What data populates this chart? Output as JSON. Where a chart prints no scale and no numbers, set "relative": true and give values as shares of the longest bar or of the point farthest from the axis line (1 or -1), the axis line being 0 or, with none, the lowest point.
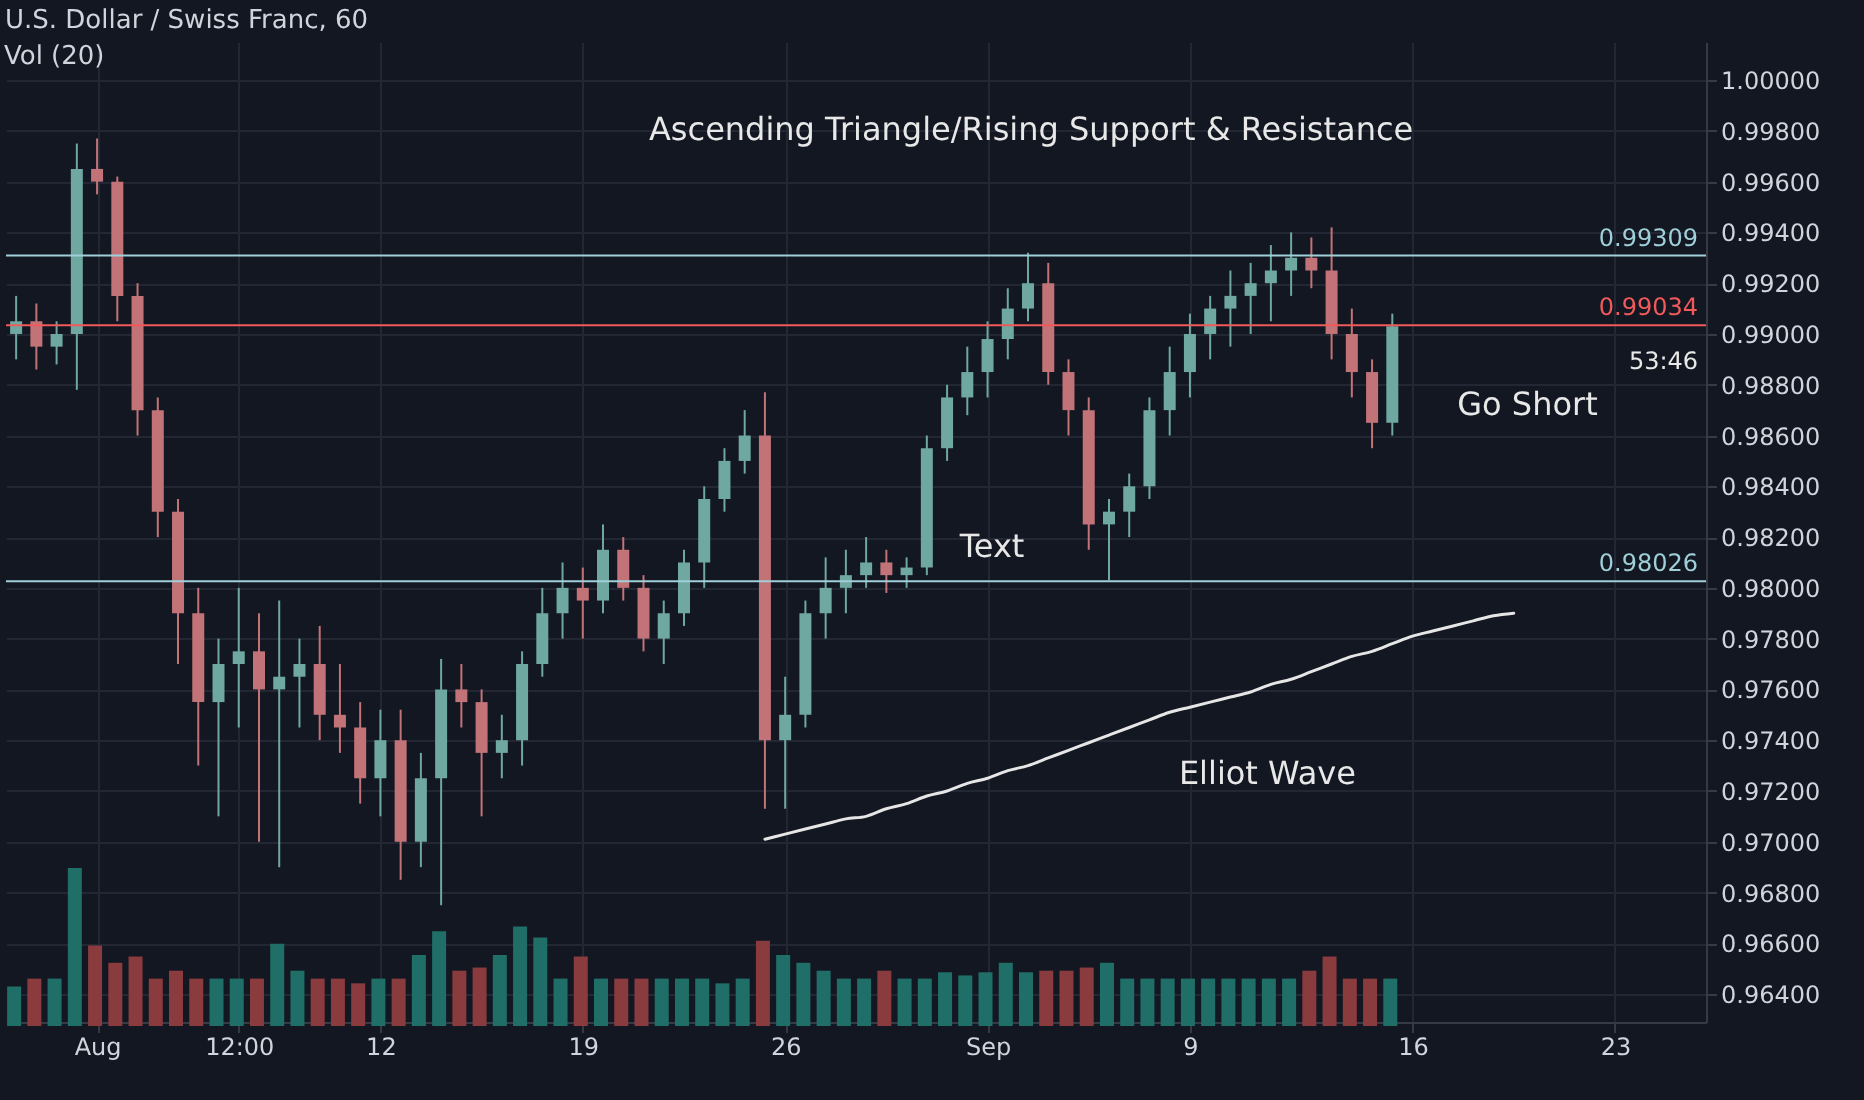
{
  "chart_data": [
    {
      "type": "candlestick",
      "title": "U.S. Dollar / Swiss Franc, 60",
      "categories": [
        null,
        null,
        null,
        null,
        "Aug",
        null,
        null,
        null,
        null,
        null,
        null,
        "12:00",
        null,
        null,
        null,
        null,
        null,
        null,
        "12",
        null,
        null,
        null,
        null,
        null,
        null,
        null,
        null,
        null,
        "19",
        null,
        null,
        null,
        null,
        null,
        null,
        null,
        null,
        null,
        "26",
        null,
        null,
        null,
        null,
        null,
        null,
        null,
        null,
        null,
        "Sep",
        null,
        null,
        null,
        null,
        null,
        null,
        null,
        null,
        null,
        "9",
        null,
        null,
        null,
        null,
        null,
        null,
        null,
        null,
        null,
        null,
        "16",
        null,
        null,
        null,
        null,
        null,
        null,
        null,
        null,
        null,
        "23",
        null,
        null,
        null,
        null
      ],
      "ohlc": [
        [
          0.99,
          0.9915,
          0.989,
          0.9905
        ],
        [
          0.9905,
          0.9912,
          0.9886,
          0.9895
        ],
        [
          0.9895,
          0.9905,
          0.9888,
          0.99
        ],
        [
          0.99,
          0.9975,
          0.9878,
          0.9965
        ],
        [
          0.9965,
          0.9977,
          0.9955,
          0.996
        ],
        [
          0.996,
          0.9962,
          0.9905,
          0.9915
        ],
        [
          0.9915,
          0.992,
          0.986,
          0.987
        ],
        [
          0.987,
          0.9875,
          0.982,
          0.983
        ],
        [
          0.983,
          0.9835,
          0.977,
          0.979
        ],
        [
          0.979,
          0.98,
          0.973,
          0.9755
        ],
        [
          0.9755,
          0.978,
          0.971,
          0.977
        ],
        [
          0.977,
          0.98,
          0.9745,
          0.9775
        ],
        [
          0.9775,
          0.979,
          0.97,
          0.976
        ],
        [
          0.976,
          0.9795,
          0.969,
          0.9765
        ],
        [
          0.9765,
          0.978,
          0.9745,
          0.977
        ],
        [
          0.977,
          0.9785,
          0.974,
          0.975
        ],
        [
          0.975,
          0.977,
          0.9735,
          0.9745
        ],
        [
          0.9745,
          0.9755,
          0.9715,
          0.9725
        ],
        [
          0.9725,
          0.9752,
          0.971,
          0.974
        ],
        [
          0.974,
          0.9752,
          0.9685,
          0.97
        ],
        [
          0.97,
          0.9735,
          0.969,
          0.9725
        ],
        [
          0.9725,
          0.9772,
          0.9675,
          0.976
        ],
        [
          0.976,
          0.977,
          0.9745,
          0.9755
        ],
        [
          0.9755,
          0.976,
          0.971,
          0.9735
        ],
        [
          0.9735,
          0.975,
          0.9725,
          0.974
        ],
        [
          0.974,
          0.9775,
          0.973,
          0.977
        ],
        [
          0.977,
          0.98,
          0.9765,
          0.979
        ],
        [
          0.979,
          0.981,
          0.978,
          0.98
        ],
        [
          0.98,
          0.9808,
          0.978,
          0.9795
        ],
        [
          0.9795,
          0.9825,
          0.979,
          0.9815
        ],
        [
          0.9815,
          0.982,
          0.9795,
          0.98
        ],
        [
          0.98,
          0.9805,
          0.9775,
          0.978
        ],
        [
          0.978,
          0.9795,
          0.977,
          0.979
        ],
        [
          0.979,
          0.9815,
          0.9785,
          0.981
        ],
        [
          0.981,
          0.984,
          0.98,
          0.9835
        ],
        [
          0.9835,
          0.9855,
          0.983,
          0.985
        ],
        [
          0.985,
          0.987,
          0.9845,
          0.986
        ],
        [
          0.986,
          0.9877,
          0.9713,
          0.974
        ],
        [
          0.974,
          0.9765,
          0.9713,
          0.975
        ],
        [
          0.975,
          0.9795,
          0.9745,
          0.979
        ],
        [
          0.979,
          0.9812,
          0.978,
          0.98
        ],
        [
          0.98,
          0.9815,
          0.979,
          0.9805
        ],
        [
          0.9805,
          0.982,
          0.98,
          0.981
        ],
        [
          0.981,
          0.9815,
          0.9798,
          0.9805
        ],
        [
          0.9805,
          0.9812,
          0.98,
          0.9808
        ],
        [
          0.9808,
          0.986,
          0.9805,
          0.9855
        ],
        [
          0.9855,
          0.988,
          0.985,
          0.9875
        ],
        [
          0.9875,
          0.9895,
          0.9868,
          0.9885
        ],
        [
          0.9885,
          0.9905,
          0.9875,
          0.9898
        ],
        [
          0.9898,
          0.9918,
          0.989,
          0.991
        ],
        [
          0.991,
          0.9932,
          0.9905,
          0.992
        ],
        [
          0.992,
          0.9928,
          0.988,
          0.9885
        ],
        [
          0.9885,
          0.989,
          0.986,
          0.987
        ],
        [
          0.987,
          0.9875,
          0.9815,
          0.9825
        ],
        [
          0.9825,
          0.9835,
          0.9803,
          0.983
        ],
        [
          0.983,
          0.9845,
          0.982,
          0.984
        ],
        [
          0.984,
          0.9875,
          0.9835,
          0.987
        ],
        [
          0.987,
          0.9895,
          0.986,
          0.9885
        ],
        [
          0.9885,
          0.9908,
          0.9875,
          0.99
        ],
        [
          0.99,
          0.9915,
          0.989,
          0.991
        ],
        [
          0.991,
          0.9925,
          0.9895,
          0.9915
        ],
        [
          0.9915,
          0.9928,
          0.99,
          0.992
        ],
        [
          0.992,
          0.9935,
          0.9905,
          0.9925
        ],
        [
          0.9925,
          0.994,
          0.9915,
          0.993
        ],
        [
          0.993,
          0.9938,
          0.9918,
          0.9925
        ],
        [
          0.9925,
          0.9942,
          0.989,
          0.99
        ],
        [
          0.99,
          0.991,
          0.9875,
          0.9885
        ],
        [
          0.9885,
          0.989,
          0.9855,
          0.9865
        ],
        [
          0.9865,
          0.9908,
          0.986,
          0.9903
        ],
        null,
        null,
        null,
        null,
        null,
        null,
        null,
        null,
        null,
        null,
        null,
        null,
        null,
        null,
        null
      ],
      "colors": [
        "#6fa8a0",
        "#c27378",
        "#6fa8a0",
        "#6fa8a0",
        "#c27378",
        "#c27378",
        "#c27378",
        "#c27378",
        "#c27378",
        "#c27378",
        "#6fa8a0",
        "#6fa8a0",
        "#c27378",
        "#6fa8a0",
        "#6fa8a0",
        "#c27378",
        "#c27378",
        "#c27378",
        "#6fa8a0",
        "#c27378",
        "#6fa8a0",
        "#6fa8a0",
        "#c27378",
        "#c27378",
        "#6fa8a0",
        "#6fa8a0",
        "#6fa8a0",
        "#6fa8a0",
        "#c27378",
        "#6fa8a0",
        "#c27378",
        "#c27378",
        "#6fa8a0",
        "#6fa8a0",
        "#6fa8a0",
        "#6fa8a0",
        "#6fa8a0",
        "#c27378",
        "#6fa8a0",
        "#6fa8a0",
        "#6fa8a0",
        "#6fa8a0",
        "#6fa8a0",
        "#c27378",
        "#6fa8a0",
        "#6fa8a0",
        "#6fa8a0",
        "#6fa8a0",
        "#6fa8a0",
        "#6fa8a0",
        "#6fa8a0",
        "#c27378",
        "#c27378",
        "#c27378",
        "#6fa8a0",
        "#6fa8a0",
        "#6fa8a0",
        "#6fa8a0",
        "#6fa8a0",
        "#6fa8a0",
        "#6fa8a0",
        "#6fa8a0",
        "#6fa8a0",
        "#6fa8a0",
        "#c27378",
        "#c27378",
        "#c27378",
        "#c27378",
        "#6fa8a0",
        null,
        null,
        null,
        null,
        null,
        null,
        null,
        null,
        null,
        null,
        null,
        null,
        null,
        null,
        null
      ],
      "series": [
        {
          "type": "line",
          "color": "#e6e6e6",
          "values": [
            null,
            null,
            null,
            null,
            null,
            null,
            null,
            null,
            null,
            null,
            null,
            null,
            null,
            null,
            null,
            null,
            null,
            null,
            null,
            null,
            null,
            null,
            null,
            null,
            null,
            null,
            null,
            null,
            null,
            null,
            null,
            null,
            null,
            null,
            null,
            null,
            null,
            0.9701,
            0.9703,
            0.9705,
            0.9707,
            0.9709,
            0.971,
            0.9713,
            0.9715,
            0.9718,
            0.972,
            0.9723,
            0.9725,
            0.9728,
            0.973,
            0.9733,
            0.9736,
            0.9739,
            0.9742,
            0.9745,
            0.9748,
            0.9751,
            0.9753,
            0.9755,
            0.9757,
            0.9759,
            0.9762,
            0.9764,
            0.9767,
            0.977,
            0.9773,
            0.9775,
            0.9778,
            0.9781,
            0.9783,
            0.9785,
            0.9787,
            0.9789,
            0.979,
            null,
            null,
            null,
            null,
            null,
            null,
            null,
            null,
            null
          ]
        }
      ],
      "ylim": [
        0.9629,
        1.0015
      ],
      "yticks": [
        {
          "value": 0.964,
          "label": "0.96400"
        },
        {
          "value": 0.966,
          "label": "0.96600"
        },
        {
          "value": 0.968,
          "label": "0.96800"
        },
        {
          "value": 0.97,
          "label": "0.97000"
        },
        {
          "value": 0.972,
          "label": "0.97200"
        },
        {
          "value": 0.974,
          "label": "0.97400"
        },
        {
          "value": 0.976,
          "label": "0.97600"
        },
        {
          "value": 0.978,
          "label": "0.97800"
        },
        {
          "value": 0.98,
          "label": "0.98000"
        },
        {
          "value": 0.982,
          "label": "0.98200"
        },
        {
          "value": 0.984,
          "label": "0.98400"
        },
        {
          "value": 0.986,
          "label": "0.98600"
        },
        {
          "value": 0.988,
          "label": "0.98800"
        },
        {
          "value": 0.99,
          "label": "0.99000"
        },
        {
          "value": 0.992,
          "label": "0.99200"
        },
        {
          "value": 0.994,
          "label": "0.99400"
        },
        {
          "value": 0.996,
          "label": "0.99600"
        },
        {
          "value": 0.998,
          "label": "0.99800"
        },
        {
          "value": 1,
          "label": "1.00000"
        }
      ],
      "grid": true,
      "ref_lines": [
        {
          "axis": "y",
          "value": 0.99309,
          "label": "0.99309",
          "color": "#9fcfd8"
        },
        {
          "axis": "y",
          "value": 0.99034,
          "label": "0.99034",
          "color": "#f05a5a"
        },
        {
          "axis": "y",
          "value": 0.98026,
          "label": "0.98026",
          "color": "#9fcfd8"
        }
      ],
      "annotations": [
        "Ascending Triangle/Rising Support & Resistance",
        "Text",
        "Go Short",
        "Elliot Wave",
        "53:46"
      ]
    },
    {
      "type": "bar",
      "title": "Vol (20)",
      "relative": true,
      "categories": [
        null,
        null,
        null,
        null,
        null,
        null,
        null,
        null,
        null,
        null,
        null,
        null,
        null,
        null,
        null,
        null,
        null,
        null,
        null,
        null,
        null,
        null,
        null,
        null,
        null,
        null,
        null,
        null,
        null,
        null,
        null,
        null,
        null,
        null,
        null,
        null,
        null,
        null,
        null,
        null,
        null,
        null,
        null,
        null,
        null,
        null,
        null,
        null,
        null,
        null,
        null,
        null,
        null,
        null,
        null,
        null,
        null,
        null,
        null,
        null,
        null,
        null,
        null,
        null,
        null,
        null,
        null,
        null,
        null
      ],
      "values": [
        0.25,
        0.3,
        0.3,
        1,
        0.51,
        0.4,
        0.44,
        0.3,
        0.35,
        0.3,
        0.3,
        0.3,
        0.3,
        0.52,
        0.35,
        0.3,
        0.3,
        0.27,
        0.3,
        0.3,
        0.45,
        0.6,
        0.35,
        0.37,
        0.45,
        0.63,
        0.56,
        0.3,
        0.44,
        0.3,
        0.3,
        0.3,
        0.3,
        0.3,
        0.3,
        0.27,
        0.3,
        0.54,
        0.45,
        0.4,
        0.35,
        0.3,
        0.3,
        0.35,
        0.3,
        0.3,
        0.34,
        0.32,
        0.34,
        0.4,
        0.34,
        0.35,
        0.35,
        0.37,
        0.4,
        0.3,
        0.3,
        0.3,
        0.3,
        0.3,
        0.3,
        0.3,
        0.3,
        0.3,
        0.35,
        0.44,
        0.3,
        0.3,
        0.3
      ],
      "colors": [
        "#1f6f68",
        "#8a3b3e",
        "#1f6f68",
        "#1f6f68",
        "#8a3b3e",
        "#8a3b3e",
        "#8a3b3e",
        "#8a3b3e",
        "#8a3b3e",
        "#8a3b3e",
        "#1f6f68",
        "#1f6f68",
        "#8a3b3e",
        "#1f6f68",
        "#1f6f68",
        "#8a3b3e",
        "#8a3b3e",
        "#8a3b3e",
        "#1f6f68",
        "#8a3b3e",
        "#1f6f68",
        "#1f6f68",
        "#8a3b3e",
        "#8a3b3e",
        "#1f6f68",
        "#1f6f68",
        "#1f6f68",
        "#1f6f68",
        "#8a3b3e",
        "#1f6f68",
        "#8a3b3e",
        "#8a3b3e",
        "#1f6f68",
        "#1f6f68",
        "#1f6f68",
        "#1f6f68",
        "#1f6f68",
        "#8a3b3e",
        "#1f6f68",
        "#1f6f68",
        "#1f6f68",
        "#1f6f68",
        "#1f6f68",
        "#8a3b3e",
        "#1f6f68",
        "#1f6f68",
        "#1f6f68",
        "#1f6f68",
        "#1f6f68",
        "#1f6f68",
        "#1f6f68",
        "#8a3b3e",
        "#8a3b3e",
        "#8a3b3e",
        "#1f6f68",
        "#1f6f68",
        "#1f6f68",
        "#1f6f68",
        "#1f6f68",
        "#1f6f68",
        "#1f6f68",
        "#1f6f68",
        "#1f6f68",
        "#1f6f68",
        "#8a3b3e",
        "#8a3b3e",
        "#8a3b3e",
        "#8a3b3e",
        "#1f6f68"
      ],
      "tick_labels": false
    }
  ]
}
